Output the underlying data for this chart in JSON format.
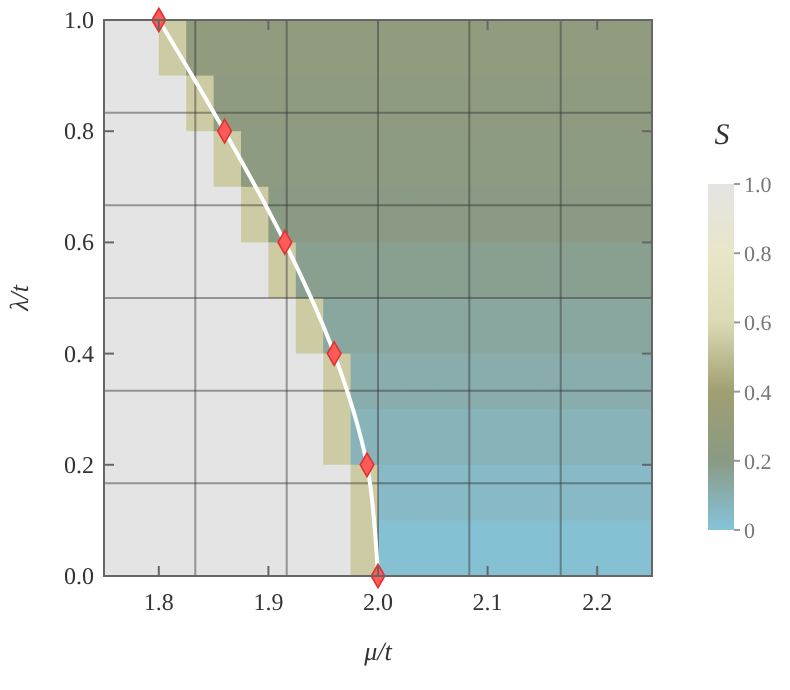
{
  "chart_data": {
    "type": "heatmap",
    "xlabel": "μ/t",
    "ylabel": "λ/t",
    "clabel": "S",
    "x": [
      1.7625,
      1.7875,
      1.8125,
      1.8375,
      1.8625,
      1.8875,
      1.9125,
      1.9375,
      1.9625,
      1.9875,
      2.0125,
      2.0375,
      2.0625,
      2.0875,
      2.1125,
      2.1375,
      2.1625,
      2.1875,
      2.2125,
      2.2375
    ],
    "y": [
      0.95,
      0.85,
      0.75,
      0.65,
      0.55,
      0.45,
      0.35,
      0.25,
      0.15,
      0.05
    ],
    "cells": [
      [
        1.0,
        1.0,
        0.55,
        0.26,
        0.26,
        0.26,
        0.26,
        0.26,
        0.26,
        0.26,
        0.26,
        0.26,
        0.26,
        0.26,
        0.26,
        0.26,
        0.26,
        0.26,
        0.26,
        0.26
      ],
      [
        1.0,
        1.0,
        1.0,
        0.55,
        0.24,
        0.24,
        0.24,
        0.24,
        0.24,
        0.24,
        0.24,
        0.24,
        0.24,
        0.24,
        0.24,
        0.24,
        0.24,
        0.24,
        0.24,
        0.24
      ],
      [
        1.0,
        1.0,
        1.0,
        1.0,
        0.55,
        0.22,
        0.22,
        0.22,
        0.22,
        0.22,
        0.22,
        0.22,
        0.22,
        0.22,
        0.22,
        0.22,
        0.22,
        0.22,
        0.22,
        0.22
      ],
      [
        1.0,
        1.0,
        1.0,
        1.0,
        1.0,
        0.55,
        0.2,
        0.2,
        0.2,
        0.2,
        0.2,
        0.2,
        0.2,
        0.2,
        0.2,
        0.2,
        0.2,
        0.2,
        0.2,
        0.2
      ],
      [
        1.0,
        1.0,
        1.0,
        1.0,
        1.0,
        1.0,
        0.55,
        0.17,
        0.17,
        0.17,
        0.17,
        0.17,
        0.17,
        0.17,
        0.17,
        0.17,
        0.17,
        0.17,
        0.17,
        0.17
      ],
      [
        1.0,
        1.0,
        1.0,
        1.0,
        1.0,
        1.0,
        1.0,
        0.55,
        0.14,
        0.14,
        0.14,
        0.14,
        0.14,
        0.14,
        0.14,
        0.14,
        0.14,
        0.14,
        0.14,
        0.14
      ],
      [
        1.0,
        1.0,
        1.0,
        1.0,
        1.0,
        1.0,
        1.0,
        1.0,
        0.55,
        0.11,
        0.11,
        0.11,
        0.11,
        0.11,
        0.11,
        0.11,
        0.11,
        0.11,
        0.11,
        0.11
      ],
      [
        1.0,
        1.0,
        1.0,
        1.0,
        1.0,
        1.0,
        1.0,
        1.0,
        0.55,
        0.08,
        0.08,
        0.08,
        0.08,
        0.08,
        0.08,
        0.08,
        0.08,
        0.08,
        0.08,
        0.08
      ],
      [
        1.0,
        1.0,
        1.0,
        1.0,
        1.0,
        1.0,
        1.0,
        1.0,
        1.0,
        0.55,
        0.05,
        0.05,
        0.05,
        0.05,
        0.05,
        0.05,
        0.05,
        0.05,
        0.05,
        0.05
      ],
      [
        1.0,
        1.0,
        1.0,
        1.0,
        1.0,
        1.0,
        1.0,
        1.0,
        1.0,
        0.55,
        0.02,
        0.02,
        0.02,
        0.02,
        0.02,
        0.02,
        0.02,
        0.02,
        0.02,
        0.02
      ]
    ],
    "clim": [
      0,
      1
    ],
    "cticks": [
      0,
      0.2,
      0.4,
      0.6,
      0.8,
      {
        "value": 1,
        "label": "1.0"
      }
    ],
    "xlim": [
      1.75,
      2.25
    ],
    "xticks": [
      1.8,
      1.9,
      {
        "value": 2,
        "label": "2.0"
      },
      2.1,
      2.2
    ],
    "ylim": [
      0,
      1
    ],
    "yticks": [
      {
        "value": 0,
        "label": "0.0"
      },
      0.2,
      0.4,
      0.6,
      0.8,
      {
        "value": 1,
        "label": "1.0"
      }
    ],
    "series": [
      {
        "type": "line",
        "color": "#ffffff",
        "x": [
          1.8,
          1.86,
          1.915,
          1.96,
          1.99,
          2.0
        ],
        "values": [
          1.0,
          0.8,
          0.6,
          0.4,
          0.2,
          0.0
        ]
      },
      {
        "type": "scatter",
        "color": "#ff5a5a",
        "marker": "diamond",
        "x": [
          1.8,
          1.86,
          1.915,
          1.96,
          1.99,
          2.0
        ],
        "values": [
          1.0,
          0.8,
          0.6,
          0.4,
          0.2,
          0.0
        ]
      }
    ],
    "ref_lines": [
      {
        "axis": "x",
        "value": 1.8333,
        "color": "#333333"
      },
      {
        "axis": "x",
        "value": 1.9167,
        "color": "#333333"
      },
      {
        "axis": "x",
        "value": 2.0,
        "color": "#333333"
      },
      {
        "axis": "x",
        "value": 2.0833,
        "color": "#333333"
      },
      {
        "axis": "x",
        "value": 2.1667,
        "color": "#333333"
      },
      {
        "axis": "y",
        "value": 0.1667,
        "color": "#333333"
      },
      {
        "axis": "y",
        "value": 0.3333,
        "color": "#333333"
      },
      {
        "axis": "y",
        "value": 0.5,
        "color": "#333333"
      },
      {
        "axis": "y",
        "value": 0.6667,
        "color": "#333333"
      },
      {
        "axis": "y",
        "value": 0.8333,
        "color": "#333333"
      }
    ]
  }
}
